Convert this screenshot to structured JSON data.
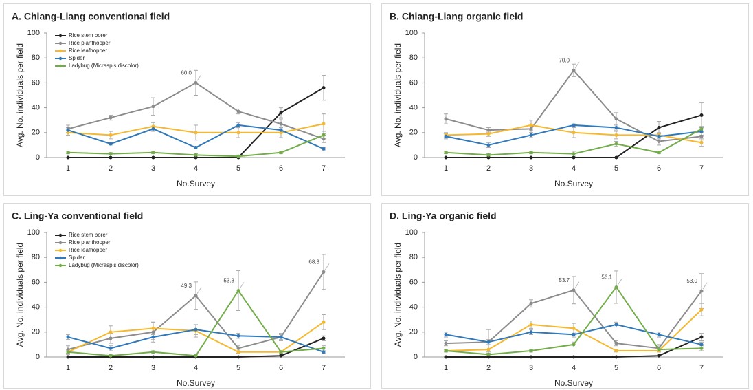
{
  "chart_data": [
    {
      "type": "line",
      "title": "A. Chiang-Liang conventional field",
      "xlabel": "No.Survey",
      "ylabel": "Avg. No. individuals per field",
      "categories": [
        "1",
        "2",
        "3",
        "4",
        "5",
        "6",
        "7"
      ],
      "ylim": [
        0,
        100
      ],
      "yticks": [
        0,
        20,
        40,
        60,
        80,
        100
      ],
      "legend": "upper left",
      "series": [
        {
          "name": "Rice stem borer",
          "color": "#222222",
          "values": [
            0,
            0,
            0,
            0,
            0,
            36,
            56
          ],
          "errors": [
            0,
            0,
            0,
            0,
            0,
            4,
            10
          ]
        },
        {
          "name": "Rice planthopper",
          "color": "#8c8c8c",
          "values": [
            23,
            32,
            41,
            60,
            37,
            27,
            15
          ],
          "errors": [
            3,
            2,
            7,
            10,
            2,
            4,
            3
          ],
          "value_labels": [
            null,
            null,
            null,
            "60.0",
            null,
            null,
            null
          ]
        },
        {
          "name": "Rice leafhopper",
          "color": "#f5b82e",
          "values": [
            20,
            18,
            25,
            20,
            20,
            20,
            27
          ],
          "errors": [
            2,
            3,
            3,
            6,
            4,
            4,
            8
          ]
        },
        {
          "name": "Spider",
          "color": "#2f78b9",
          "values": [
            22,
            11,
            23,
            8,
            26,
            22,
            7
          ],
          "errors": [
            2,
            1,
            2,
            1,
            2,
            2,
            1
          ]
        },
        {
          "name": "Ladybug (Micraspis discolor)",
          "color": "#72ad4a",
          "values": [
            4,
            3,
            4,
            2,
            1,
            4,
            18
          ],
          "errors": [
            1,
            1,
            1,
            1,
            1,
            1,
            3
          ]
        }
      ]
    },
    {
      "type": "line",
      "title": "B. Chiang-Liang organic field",
      "xlabel": "No.Survey",
      "ylabel": "Avg. No. individuals per field",
      "categories": [
        "1",
        "2",
        "3",
        "4",
        "5",
        "6",
        "7"
      ],
      "ylim": [
        0,
        100
      ],
      "yticks": [
        0,
        20,
        40,
        60,
        80,
        100
      ],
      "series": [
        {
          "color": "#222222",
          "values": [
            0,
            0,
            0,
            0,
            0,
            24,
            34
          ],
          "errors": [
            0,
            0,
            0,
            0,
            0,
            5,
            10
          ]
        },
        {
          "color": "#8c8c8c",
          "values": [
            31,
            22,
            23,
            70,
            31,
            13,
            17
          ],
          "errors": [
            4,
            2,
            3,
            5,
            5,
            3,
            3
          ],
          "value_labels": [
            null,
            null,
            null,
            "70.0",
            null,
            null,
            null
          ]
        },
        {
          "color": "#f5b82e",
          "values": [
            18,
            19,
            26,
            20,
            18,
            18,
            12
          ],
          "errors": [
            2,
            2,
            4,
            4,
            3,
            2,
            3
          ]
        },
        {
          "color": "#2f78b9",
          "values": [
            17,
            10,
            18,
            26,
            24,
            17,
            21
          ],
          "errors": [
            2,
            2,
            2,
            1,
            2,
            2,
            3
          ]
        },
        {
          "color": "#72ad4a",
          "values": [
            4,
            2,
            4,
            3,
            11,
            4,
            23
          ],
          "errors": [
            1,
            1,
            1,
            2,
            2,
            1,
            2
          ]
        }
      ]
    },
    {
      "type": "line",
      "title": "C. Ling-Ya conventional field",
      "xlabel": "No.Survey",
      "ylabel": "Avg. No. individuals per field",
      "categories": [
        "1",
        "2",
        "3",
        "4",
        "5",
        "6",
        "7"
      ],
      "ylim": [
        0,
        100
      ],
      "yticks": [
        0,
        20,
        40,
        60,
        80,
        100
      ],
      "legend": "upper left",
      "series": [
        {
          "name": "Rice stem borer",
          "color": "#222222",
          "values": [
            0,
            0,
            0,
            0,
            0,
            1,
            15
          ],
          "errors": [
            0,
            0,
            0,
            0,
            0,
            1,
            2
          ]
        },
        {
          "name": "Rice planthopper",
          "color": "#8c8c8c",
          "values": [
            6,
            15,
            20,
            49.3,
            7,
            16,
            68.3
          ],
          "errors": [
            3,
            4,
            8,
            11,
            2,
            3,
            14
          ],
          "value_labels": [
            null,
            null,
            null,
            "49.3",
            null,
            null,
            "68.3"
          ]
        },
        {
          "name": "Rice leafhopper",
          "color": "#f5b82e",
          "values": [
            4,
            20,
            23,
            21,
            4,
            4,
            28
          ],
          "errors": [
            2,
            5,
            5,
            5,
            1,
            1,
            6
          ]
        },
        {
          "name": "Spider",
          "color": "#2f78b9",
          "values": [
            16,
            7,
            16,
            22,
            17,
            16,
            4
          ],
          "errors": [
            2,
            2,
            2,
            4,
            2,
            2,
            1
          ]
        },
        {
          "name": "Ladybug (Micraspis discolor)",
          "color": "#72ad4a",
          "values": [
            4,
            1,
            4,
            1,
            53.3,
            4,
            7
          ],
          "errors": [
            1,
            1,
            1,
            1,
            16,
            1,
            2
          ],
          "value_labels": [
            null,
            null,
            null,
            null,
            "53.3",
            null,
            null
          ]
        }
      ]
    },
    {
      "type": "line",
      "title": "D. Ling-Ya organic field",
      "xlabel": "No.Survey",
      "ylabel": "Avg. No. individuals per field",
      "categories": [
        "1",
        "2",
        "3",
        "4",
        "5",
        "6",
        "7"
      ],
      "ylim": [
        0,
        100
      ],
      "yticks": [
        0,
        20,
        40,
        60,
        80,
        100
      ],
      "series": [
        {
          "color": "#222222",
          "values": [
            0,
            0,
            0,
            0,
            0,
            1,
            16
          ],
          "errors": [
            0,
            0,
            0,
            0,
            0,
            1,
            3
          ]
        },
        {
          "color": "#8c8c8c",
          "values": [
            11,
            12,
            43,
            53.7,
            11,
            7,
            53
          ],
          "errors": [
            2,
            10,
            3,
            11,
            2,
            3,
            14
          ],
          "value_labels": [
            null,
            null,
            null,
            "53.7",
            null,
            null,
            "53.0"
          ]
        },
        {
          "color": "#f5b82e",
          "values": [
            5,
            6,
            26,
            23,
            5,
            5,
            38
          ],
          "errors": [
            1,
            2,
            3,
            4,
            1,
            1,
            5
          ]
        },
        {
          "color": "#2f78b9",
          "values": [
            18,
            12,
            20,
            18,
            26,
            18,
            10
          ],
          "errors": [
            2,
            2,
            2,
            2,
            2,
            2,
            2
          ]
        },
        {
          "color": "#72ad4a",
          "values": [
            5,
            2,
            5,
            10,
            56.1,
            6,
            7
          ],
          "errors": [
            1,
            1,
            1,
            2,
            13,
            1,
            2
          ],
          "value_labels": [
            null,
            null,
            null,
            null,
            "56.1",
            null,
            null
          ]
        }
      ]
    }
  ]
}
